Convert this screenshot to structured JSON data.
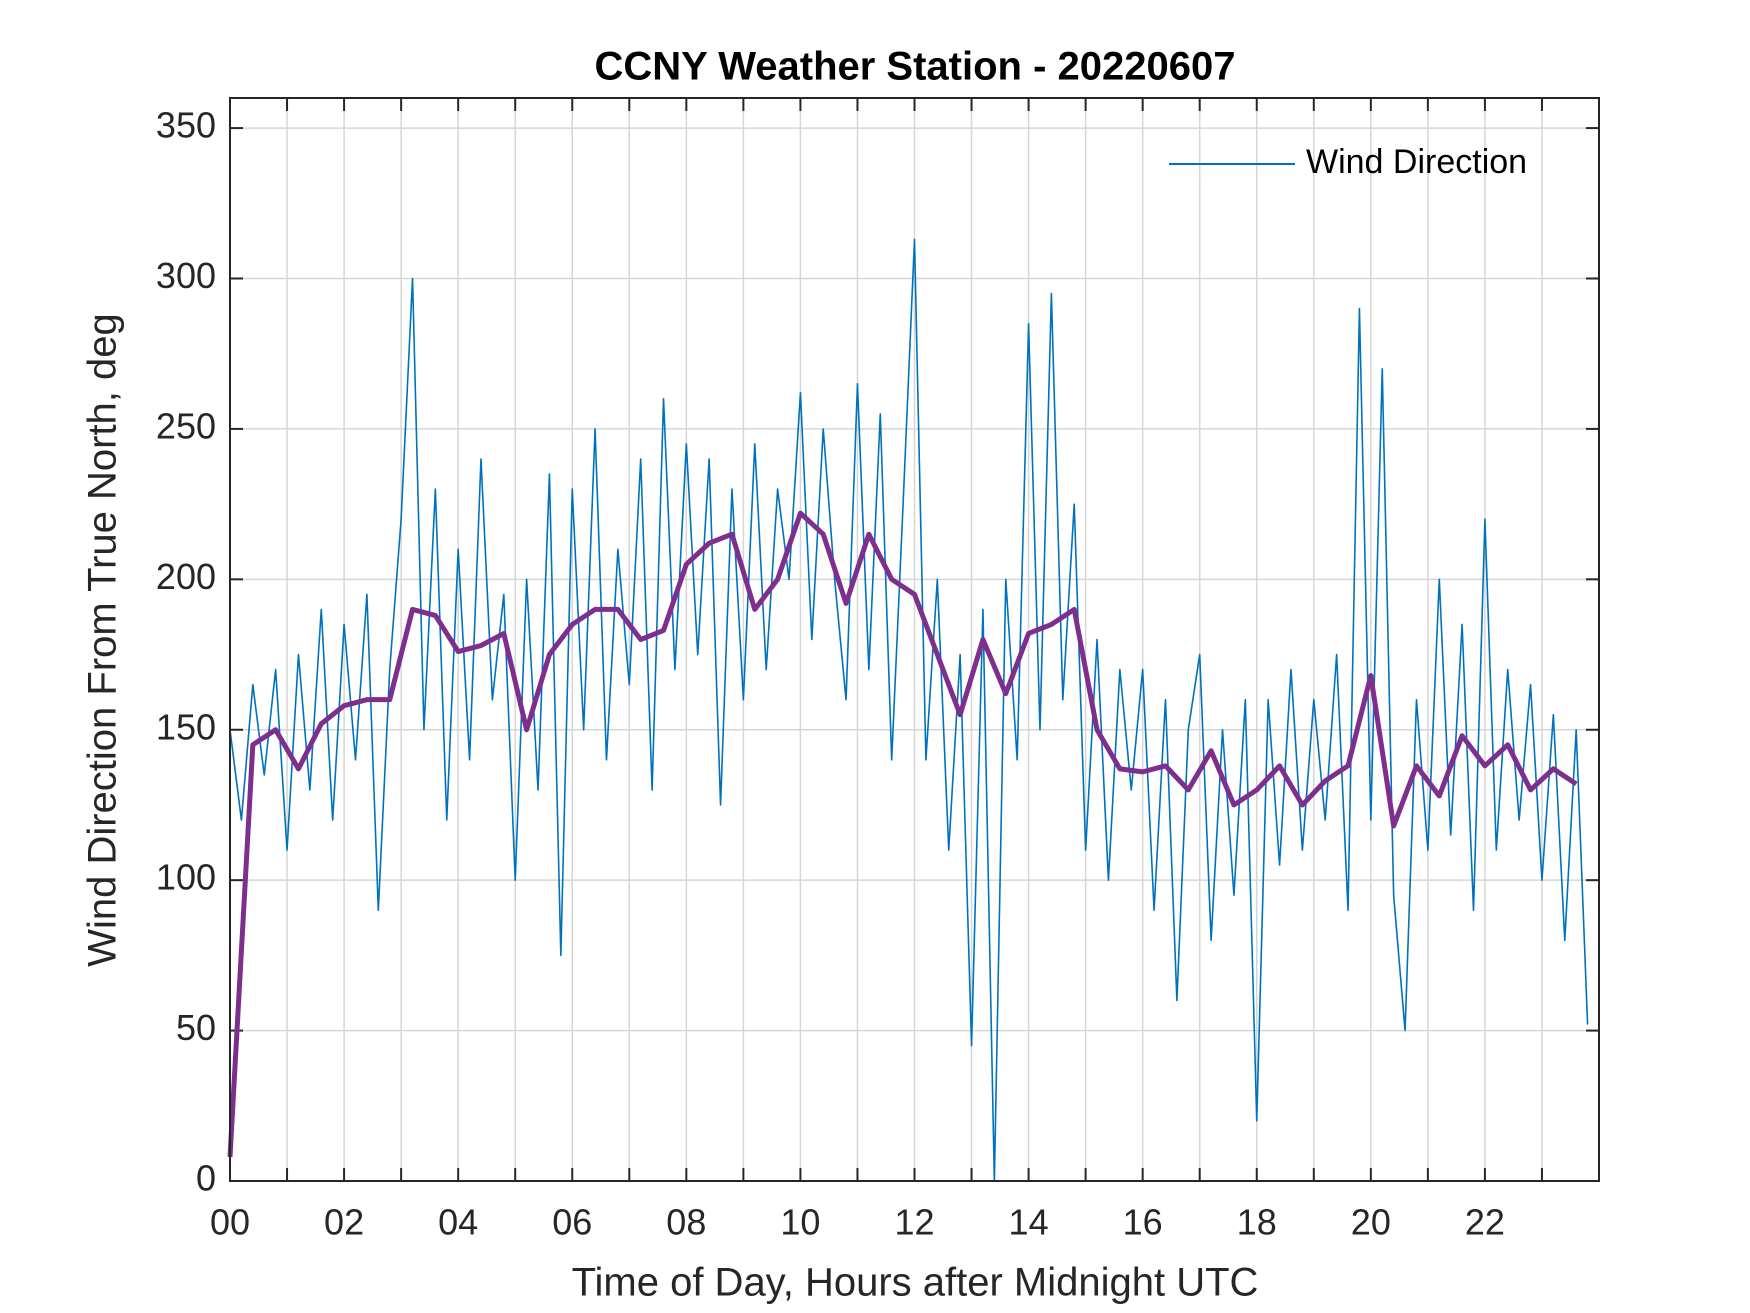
{
  "chart_data": {
    "type": "line",
    "title": "CCNY Weather Station - 20220607",
    "xlabel": "Time of Day, Hours after Midnight UTC",
    "ylabel": "Wind Direction From True North, deg",
    "xlim": [
      0,
      24
    ],
    "ylim": [
      0,
      360
    ],
    "xticks": [
      {
        "value": 0,
        "label": "00"
      },
      {
        "value": 2,
        "label": "02"
      },
      {
        "value": 4,
        "label": "04"
      },
      {
        "value": 6,
        "label": "06"
      },
      {
        "value": 8,
        "label": "08"
      },
      10,
      12,
      14,
      16,
      18,
      20,
      22
    ],
    "xminorticks": [
      1,
      3,
      5,
      7,
      9,
      11,
      13,
      15,
      17,
      19,
      21,
      23
    ],
    "yticks": [
      0,
      50,
      100,
      150,
      200,
      250,
      300,
      350
    ],
    "grid": true,
    "legend": "upper right",
    "series": [
      {
        "name": "Wind Direction",
        "color": "#0072bd",
        "x": [
          0,
          0.2,
          0.4,
          0.6,
          0.8,
          1,
          1.2,
          1.4,
          1.6,
          1.8,
          2,
          2.2,
          2.4,
          2.6,
          2.8,
          3,
          3.2,
          3.4,
          3.6,
          3.8,
          4,
          4.2,
          4.4,
          4.6,
          4.8,
          5,
          5.2,
          5.4,
          5.6,
          5.8,
          6,
          6.2,
          6.4,
          6.6,
          6.8,
          7,
          7.2,
          7.4,
          7.6,
          7.8,
          8,
          8.2,
          8.4,
          8.6,
          8.8,
          9,
          9.2,
          9.4,
          9.6,
          9.8,
          10,
          10.2,
          10.4,
          10.6,
          10.8,
          11,
          11.2,
          11.4,
          11.6,
          11.8,
          12,
          12.2,
          12.4,
          12.6,
          12.8,
          13,
          13.2,
          13.4,
          13.6,
          13.8,
          14,
          14.2,
          14.4,
          14.6,
          14.8,
          15,
          15.2,
          15.4,
          15.6,
          15.8,
          16,
          16.2,
          16.4,
          16.6,
          16.8,
          17,
          17.2,
          17.4,
          17.6,
          17.8,
          18,
          18.2,
          18.4,
          18.6,
          18.8,
          19,
          19.2,
          19.4,
          19.6,
          19.8,
          20,
          20.2,
          20.4,
          20.6,
          20.8,
          21,
          21.2,
          21.4,
          21.6,
          21.8,
          22,
          22.2,
          22.4,
          22.6,
          22.8,
          23,
          23.2,
          23.4,
          23.6,
          23.8
        ],
        "values": [
          150,
          120,
          165,
          135,
          170,
          110,
          175,
          130,
          190,
          120,
          185,
          140,
          195,
          90,
          170,
          220,
          300,
          150,
          230,
          120,
          210,
          140,
          240,
          160,
          195,
          100,
          200,
          130,
          235,
          75,
          230,
          150,
          250,
          140,
          210,
          165,
          240,
          130,
          260,
          170,
          245,
          175,
          240,
          125,
          230,
          160,
          245,
          170,
          230,
          200,
          262,
          180,
          250,
          200,
          160,
          265,
          170,
          255,
          140,
          225,
          313,
          140,
          200,
          110,
          175,
          45,
          190,
          0,
          200,
          140,
          285,
          150,
          295,
          160,
          225,
          110,
          180,
          100,
          170,
          130,
          170,
          90,
          160,
          60,
          150,
          175,
          80,
          150,
          95,
          160,
          20,
          160,
          105,
          170,
          110,
          160,
          120,
          175,
          90,
          290,
          120,
          270,
          95,
          50,
          160,
          110,
          200,
          115,
          185,
          90,
          220,
          110,
          170,
          120,
          165,
          100,
          155,
          80,
          150,
          52
        ]
      },
      {
        "color": "#7e2f8e",
        "x": [
          0,
          0.4,
          0.8,
          1.2,
          1.6,
          2,
          2.4,
          2.8,
          3.2,
          3.6,
          4,
          4.4,
          4.8,
          5.2,
          5.6,
          6,
          6.4,
          6.8,
          7.2,
          7.6,
          8,
          8.4,
          8.8,
          9.2,
          9.6,
          10,
          10.4,
          10.8,
          11.2,
          11.6,
          12,
          12.4,
          12.8,
          13.2,
          13.6,
          14,
          14.4,
          14.8,
          15.2,
          15.6,
          16,
          16.4,
          16.8,
          17.2,
          17.6,
          18,
          18.4,
          18.8,
          19.2,
          19.6,
          20,
          20.4,
          20.8,
          21.2,
          21.6,
          22,
          22.4,
          22.8,
          23.2,
          23.6
        ],
        "values": [
          8,
          145,
          150,
          137,
          152,
          158,
          160,
          160,
          190,
          188,
          176,
          178,
          182,
          150,
          175,
          185,
          190,
          190,
          180,
          183,
          205,
          212,
          215,
          190,
          200,
          222,
          215,
          192,
          215,
          200,
          195,
          175,
          155,
          180,
          162,
          182,
          185,
          190,
          150,
          137,
          136,
          138,
          130,
          143,
          125,
          130,
          138,
          125,
          133,
          138,
          168,
          118,
          138,
          128,
          148,
          138,
          145,
          130,
          137,
          132
        ]
      }
    ]
  }
}
